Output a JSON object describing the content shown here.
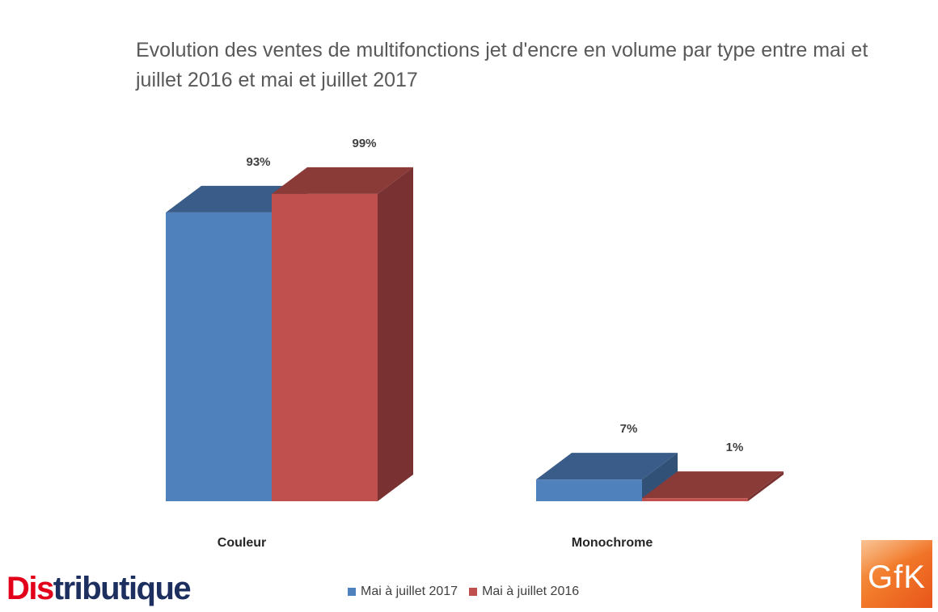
{
  "chart_data": {
    "type": "bar",
    "title": "Evolution des ventes de multifonctions jet d'encre en volume par type entre mai et juillet 2016 et mai et juillet 2017",
    "categories": [
      "Couleur",
      "Monochrome"
    ],
    "series": [
      {
        "name": "Mai à juillet 2017",
        "values": [
          93,
          7
        ],
        "labels": [
          "93%",
          "7%"
        ],
        "color": "#4f81bd"
      },
      {
        "name": "Mai à juillet 2016",
        "values": [
          99,
          1
        ],
        "labels": [
          "99%",
          "1%"
        ],
        "color": "#c0504d"
      }
    ],
    "ylim": [
      0,
      100
    ],
    "unit": "%",
    "grid": false,
    "three_d": true,
    "legend_position": "bottom"
  },
  "logos": {
    "distributique": {
      "part1": "Dis",
      "part2": "tributique",
      "color_red": "#e2001a",
      "color_navy": "#1c2f5f"
    },
    "gfk": {
      "text": "GfK",
      "color": "#f07f2c"
    }
  }
}
